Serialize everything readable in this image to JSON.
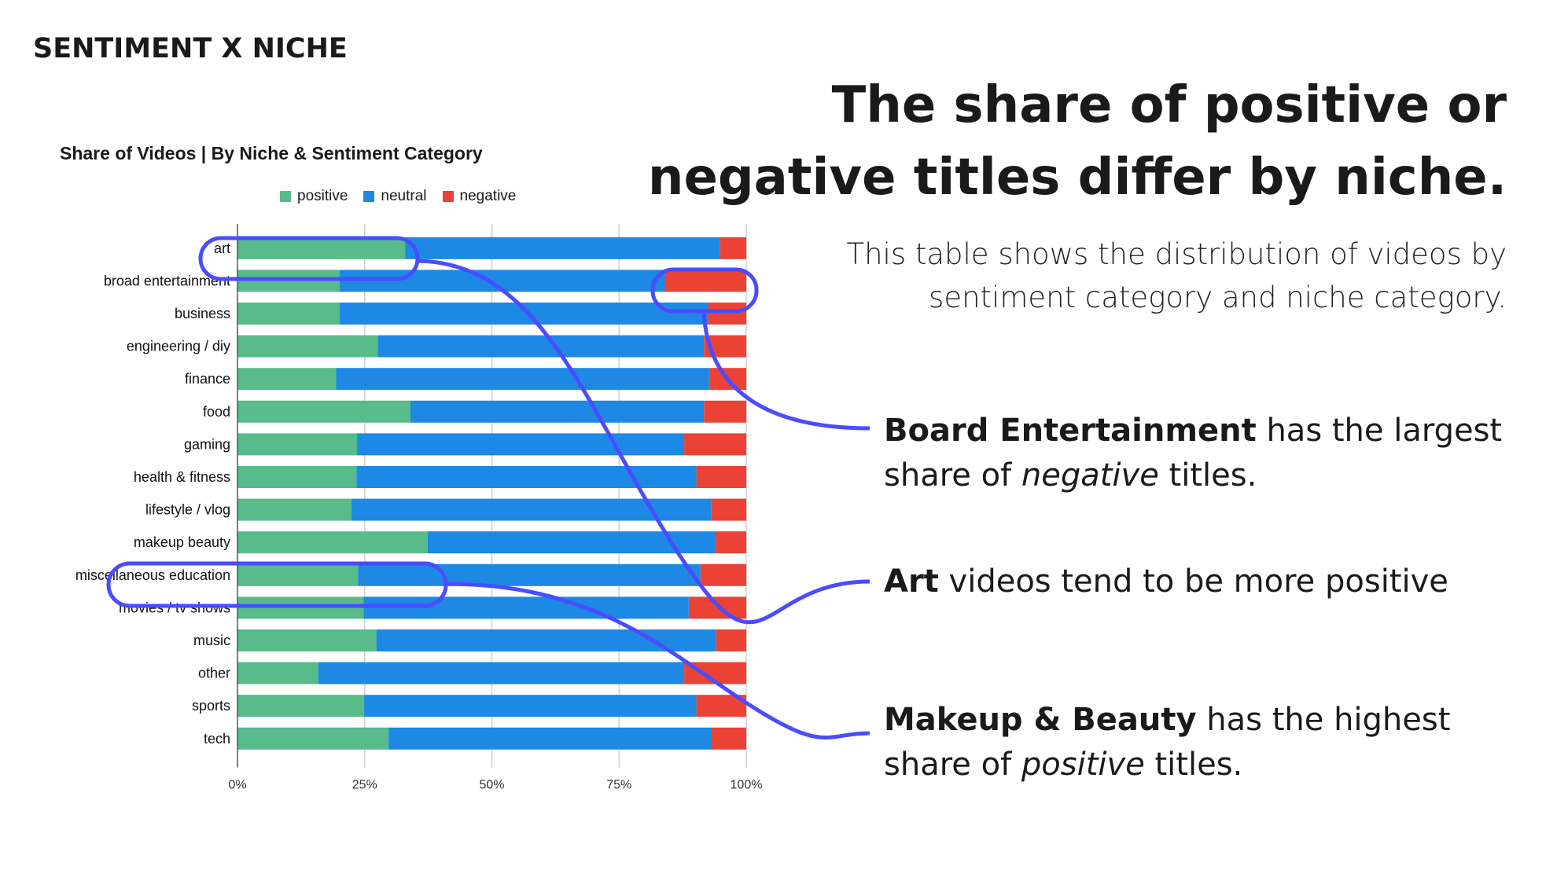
{
  "section_title": "SENTIMENT X NICHE",
  "headline": [
    "The share of positive or",
    "negative titles differ by niche."
  ],
  "subtitle": [
    "This table shows the distribution of videos by",
    "sentiment category and niche category."
  ],
  "annotations": [
    {
      "bold": "Board Entertainment",
      "text1": " has the largest",
      "text2": "share of ",
      "italic": "negative",
      "text3": " titles."
    },
    {
      "bold": "Art",
      "text1": " videos tend to be more positive"
    },
    {
      "bold": "Makeup & Beauty",
      "text1": " has the highest",
      "text2": "share of ",
      "italic": "positive",
      "text3": " titles."
    }
  ],
  "colors": {
    "positive": "#57bb8a",
    "neutral": "#1e88e5",
    "negative": "#ea4335",
    "annotation": "#4a4cff"
  },
  "chart_data": {
    "type": "bar",
    "orientation": "horizontal",
    "stacked": "percent",
    "title": "Share of Videos | By Niche & Sentiment Category",
    "legend_position": "top",
    "categories": [
      "art",
      "broad entertainment",
      "business",
      "engineering / diy",
      "finance",
      "food",
      "gaming",
      "health & fitness",
      "lifestyle / vlog",
      "makeup beauty",
      "miscellaneous education",
      "movies / tv shows",
      "music",
      "other",
      "sports",
      "tech"
    ],
    "series": [
      {
        "name": "positive",
        "values": [
          33.0,
          20.1,
          20.1,
          27.6,
          19.4,
          34.0,
          23.5,
          23.4,
          22.4,
          37.4,
          23.7,
          24.8,
          27.3,
          15.9,
          24.9,
          29.7
        ]
      },
      {
        "name": "neutral",
        "values": [
          61.8,
          63.9,
          72.4,
          64.1,
          73.3,
          57.7,
          64.3,
          66.8,
          70.7,
          56.5,
          67.3,
          63.9,
          66.8,
          71.9,
          65.3,
          63.5
        ]
      },
      {
        "name": "negative",
        "values": [
          5.2,
          16.0,
          7.5,
          8.3,
          7.3,
          8.3,
          12.2,
          9.8,
          6.9,
          6.1,
          9.0,
          11.3,
          5.9,
          12.2,
          9.8,
          6.8
        ]
      }
    ],
    "xlim": [
      0,
      100
    ],
    "xticks": [
      "0%",
      "25%",
      "50%",
      "75%",
      "100%"
    ],
    "grid": true
  }
}
